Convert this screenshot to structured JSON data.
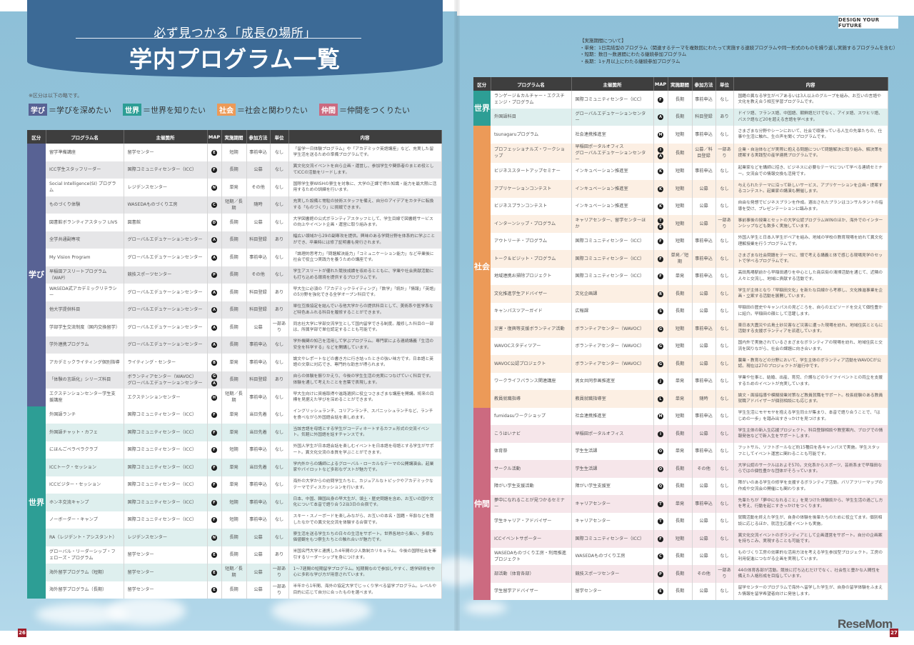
{
  "header": {
    "subtitle": "必ず見つかる「成長の場所」",
    "title": "学内プログラム一覧",
    "design_tag": "DESIGN YOUR FUTURE"
  },
  "legend": {
    "note": "※区分は以下の略です。",
    "items": [
      {
        "tag": "学び",
        "text": "＝学びを深めたい",
        "color": "#586294"
      },
      {
        "tag": "世界",
        "text": "＝世界を知りたい",
        "color": "#2d9e95"
      },
      {
        "tag": "社会",
        "text": "＝社会と関わりたい",
        "color": "#ec9a58"
      },
      {
        "tag": "仲間",
        "text": "＝仲間をつくりたい",
        "color": "#cc6a80"
      }
    ]
  },
  "period_note": {
    "title": "【実施期間について】",
    "lines": [
      "・単発：1日完結型のプログラム（関連するテーマを複数回にわたって実施する連続プログラムや同一形式のものを繰り返し実施するプログラムを含む）",
      "・短期：数日～数週間にわたる継続参加プログラム",
      "・長期：1ヶ月以上にわたる継続参加プログラム"
    ]
  },
  "table_headers": {
    "category": "区分",
    "name": "プログラム名",
    "host": "主催箇所",
    "map": "MAP",
    "period": "実施期間",
    "method": "参加方法",
    "credit": "単位",
    "content": "内容"
  },
  "categories": {
    "manabi": "学び",
    "sekai": "世界",
    "shakai": "社会",
    "nakama": "仲間"
  },
  "left_rows": [
    {
      "cat": "manabi",
      "name": "留学準備講座",
      "host": "留学センター",
      "map": [
        "E"
      ],
      "period": "短期",
      "method": "事前申込",
      "credit": "なし",
      "content": "「留学一日体験プログラム」や「アカデミック英語講座」など、充実した留学生活を送るための準備プログラムです。"
    },
    {
      "cat": "manabi",
      "name": "ICC学生スタッフリーダー",
      "host": "国際コミュニティセンター（ICC）",
      "map": [
        "F"
      ],
      "period": "長期",
      "method": "公募",
      "credit": "なし",
      "content": "異文化交流イベントを自ら企画・運営し、参加学生や関係者のまとめ役としてICCの活動をリードします。"
    },
    {
      "cat": "manabi",
      "name": "Social Intelligence(SI) プログラム",
      "host": "レジデンスセンター",
      "map": [
        "N"
      ],
      "period": "単発",
      "method": "その他",
      "credit": "なし",
      "content": "国際学生寮WISHの寮生を対象に、大学の正課で得た知識・能力を最大限に活用するための訓練を行います。"
    },
    {
      "cat": "manabi",
      "name": "ものづくり体験",
      "host": "WASEDAものづくり工房",
      "map": [
        "C"
      ],
      "period": "短期／長期",
      "method": "随時",
      "credit": "なし",
      "content": "充実した設備と常駐の技術スタッフを備え、自分のアイデアをカタチに転換する「ものづくり」に挑戦できます。"
    },
    {
      "cat": "manabi",
      "name": "図書館ボランティアスタッフ LIVS",
      "host": "図書館",
      "map": [
        "D"
      ],
      "period": "長期",
      "method": "公募",
      "credit": "なし",
      "content": "大学図書館の公式ボランティアスタッフとして、学生目線で図書館サービスの向上やイベント企画・運営に取り組みます。"
    },
    {
      "cat": "manabi",
      "name": "全学共通副専攻",
      "host": "グローバルエデュケーションセンター",
      "map": [
        "A"
      ],
      "period": "長期",
      "method": "科目登録",
      "credit": "あり",
      "content": "幅広い領域から29の副専攻を提供。興味のある学問分野を体系的に学ぶことができ、卒業時には修了証明書も発行されます。"
    },
    {
      "cat": "manabi",
      "name": "My Vision Program",
      "host": "グローバルエデュケーションセンター",
      "map": [
        "A"
      ],
      "period": "長期",
      "method": "事前申込",
      "credit": "なし",
      "content": "「論理的思考力」「問題解決能力」「コミュニケーション能力」など卒業後に社会で役立つ実践力を養うための講座です。"
    },
    {
      "cat": "manabi",
      "name": "早稲田アスリートプログラム（WAP）",
      "host": "競技スポーツセンター",
      "map": [
        "P"
      ],
      "period": "長期",
      "method": "その他",
      "credit": "なし",
      "content": "学生アスリートが優れた競技成績を収めるとともに、学業や社会貢献活動にも打ち込める環境を提供するプログラムです。"
    },
    {
      "cat": "manabi",
      "name": "WASEDA式アカデミックリテラシー",
      "host": "グローバルエデュケーションセンター",
      "map": [
        "A"
      ],
      "period": "長期",
      "method": "科目登録",
      "credit": "あり",
      "content": "早大生に必須の「アカデミックライティング」「数学」「統計」「情報」「英語」の5分野を強化できる全学オープン科目です。"
    },
    {
      "cat": "manabi",
      "name": "他大学提供科目",
      "host": "グローバルエデュケーションセンター",
      "map": [
        "A"
      ],
      "period": "長期",
      "method": "科目登録",
      "credit": "あり",
      "content": "単位互換協定を結んでいる他大学からの提供科目として、美術系や医学系など特色あふれる科目を履修することができます。"
    },
    {
      "cat": "manabi",
      "name": "学部学生交流制度（国内交換留学）",
      "host": "グローバルエデュケーションセンター",
      "map": [
        "A"
      ],
      "period": "長期",
      "method": "公募",
      "credit": "一部あり",
      "content": "同志社大学に学部交流学生として国内留学できる制度。履修した科目の一部は、所属学部で単位認定することも可能です。"
    },
    {
      "cat": "manabi",
      "name": "学外連携プログラム",
      "host": "グローバルエデュケーションセンター",
      "map": [
        "A"
      ],
      "period": "長期",
      "method": "事前申込",
      "credit": "なし",
      "content": "学外機関の知己を活用して学ぶプログラム。専門家による連続講義「生活の安全を科学する」などを開講しています。"
    },
    {
      "cat": "manabi",
      "name": "アカデミックライティング個別指導",
      "host": "ライティング・センター",
      "map": [
        "B"
      ],
      "period": "単発",
      "method": "事前申込",
      "credit": "なし",
      "content": "論文やレポートなどの書き方に行き詰ったときの強い味方です。日本語と英語の文章に対応でき、専門的な助言が得られます。"
    },
    {
      "cat": "manabi",
      "name": "「体験の言語化」シリーズ科目",
      "host": "ボランティアセンター（WAVOC）\nグローバルエデュケーションセンター",
      "map": [
        "G",
        "A"
      ],
      "period": "長期",
      "method": "科目登録",
      "credit": "あり",
      "content": "自らの体験を振りかえり、今後の学生生活の充実につなげていく科目です。体験を通して考えたことを言葉で表現します。"
    },
    {
      "cat": "manabi",
      "name": "エクステンションセンター学生支援講座",
      "host": "エクステンションセンター",
      "map": [
        "H"
      ],
      "period": "短期／長期",
      "method": "事前申込",
      "credit": "なし",
      "content": "早大生向けに資格取得や進路選択に役立つさまざまな講座を開講。将来の目標を見据えた学びを深めることができます。"
    },
    {
      "cat": "sekai",
      "name": "外国語ランチ",
      "host": "国際コミュニティセンター（ICC）",
      "map": [
        "F"
      ],
      "period": "単発",
      "method": "当日先着",
      "credit": "なし",
      "content": "イングリッシュランチ、コリアンランチ、スパニッシュランチなど、ランチを食べながら外国語会話を楽しめます。"
    },
    {
      "cat": "sekai",
      "name": "外国語チャット・カフェ",
      "host": "国際コミュニティセンター（ICC）",
      "map": [
        "F"
      ],
      "period": "単発",
      "method": "当日先着",
      "credit": "なし",
      "content": "当該言語を母語とする学生がコーディネートするカフェ形式の交流イベント。気軽に外国語を話すチャンスです。"
    },
    {
      "cat": "sekai",
      "name": "にほんごペラペラクラブ",
      "host": "国際コミュニティセンター（ICC）",
      "map": [
        "F"
      ],
      "period": "短期",
      "method": "事前申込",
      "credit": "なし",
      "content": "外国人学生が日本語会話を楽しむイベントを日本語を母語とする学生がサポート。異文化交流の本質を学ぶことができます。"
    },
    {
      "cat": "sekai",
      "name": "ICCトーク・セッション",
      "host": "国際コミュニティセンター（ICC）",
      "map": [
        "F"
      ],
      "period": "単発",
      "method": "当日先着",
      "credit": "なし",
      "content": "学内外からの講師によるグローバル・ローカルなテーマの公開講演会。起業家やパイロットなど多彩なゲストが魅力です。"
    },
    {
      "cat": "sekai",
      "name": "ICCビジター・セッション",
      "host": "国際コミュニティセンター（ICC）",
      "map": [
        "F"
      ],
      "period": "単発",
      "method": "事前申込",
      "credit": "なし",
      "content": "海外の大学からの訪問学生たちと、カジュアルなトピックやアカデミックなテーマでディスカッションを行います。"
    },
    {
      "cat": "sekai",
      "name": "ホンネ交流キャンプ",
      "host": "国際コミュニティセンター（ICC）",
      "map": [
        "F"
      ],
      "period": "短期",
      "method": "事前申込",
      "credit": "なし",
      "content": "日本、中国、韓国出身の早大生が、領土・歴史問題を含め、お互いの国や文化について本音で語り合う2泊3日の合宿です。"
    },
    {
      "cat": "sekai",
      "name": "ノーボーダー・キャンプ",
      "host": "国際コミュニティセンター（ICC）",
      "map": [
        "F"
      ],
      "period": "短期",
      "method": "事前申込",
      "credit": "なし",
      "content": "スキー・スノーボードを楽しみながら、お互いの本名・国籍・年齢などを隠したなかでの異文化交流を体験する合宿です。"
    },
    {
      "cat": "sekai",
      "name": "RA（レジデント・アシスタント）",
      "host": "レジデンスセンター",
      "map": [
        "N"
      ],
      "period": "長期",
      "method": "公募",
      "credit": "なし",
      "content": "寮生活を送る学生たちの日々の生活をサポート。世界各地から集い、多様な価値観をもつ寮生たちとの触れ合いが魅力です。"
    },
    {
      "cat": "sekai",
      "name": "グローバル・リーダーシップ・フェローズ・プログラム",
      "host": "留学センター",
      "map": [
        "E"
      ],
      "period": "長期",
      "method": "公募",
      "credit": "あり",
      "content": "米国名門大学と連携した4年間の少人数制カリキュラム。今後の国際社会を牽引するリーダーシップを身につけます。"
    },
    {
      "cat": "sekai",
      "name": "海外留学プログラム（短期）",
      "host": "留学センター",
      "map": [
        "E"
      ],
      "period": "短期／長期",
      "method": "公募",
      "credit": "一部あり",
      "content": "1～7週間の短期留学プログラム。短期間なので参加しやすく、語学研修を中心に多彩な学び方が用意されています。"
    },
    {
      "cat": "sekai",
      "name": "海外留学プログラム（長期）",
      "host": "留学センター",
      "map": [
        "E"
      ],
      "period": "長期",
      "method": "公募",
      "credit": "一部あり",
      "content": "半年から1年間、海外の協定大学でじっくり学べる留学プログラム。レベルや目的に応じて自分に合ったものを選べます。"
    }
  ],
  "right_rows": [
    {
      "cat": "sekai",
      "name": "ランゲージ＆カルチャー・エクスチェンジ・プログラム",
      "host": "国際コミュニティセンター（ICC）",
      "map": [
        "F"
      ],
      "period": "長期",
      "method": "事前申込",
      "credit": "なし",
      "content": "国籍の異なる学生がペアあるいは3人以上のグループを組み、お互いの言語や文化を教え合う相互学習プログラムです。"
    },
    {
      "cat": "sekai",
      "name": "外国語科目",
      "host": "グローバルエデュケーションセンター",
      "map": [
        "A"
      ],
      "period": "長期",
      "method": "科目登録",
      "credit": "あり",
      "content": "ドイツ語、フランス語、中国語、朝鮮語だけでなく、アイヌ語、スワヒリ語、バスク語など20を超える言語を学べます。"
    },
    {
      "cat": "shakai",
      "name": "tsunagaruプログラム",
      "host": "社会連携推進室",
      "map": [
        "M"
      ],
      "period": "短期",
      "method": "事前申込",
      "credit": "なし",
      "content": "さまざまな分野やシーンにおいて、社会で頑張っている人生の先輩たちの、仕事や生活に触れ、生の声を聞くプログラムです。"
    },
    {
      "cat": "shakai",
      "name": "プロフェッショナルズ・ワークショップ",
      "host": "早稲田ポータルオフィス\nグローバルエデュケーションセンター",
      "map": [
        "I",
        "A"
      ],
      "period": "長期",
      "method": "公募／科目登録",
      "credit": "一部あり",
      "content": "企業・自治体などが実際に抱える問題について問題解決に取り組み、解決策を提案する実践型の産学連携プログラムです。"
    },
    {
      "cat": "shakai",
      "name": "ビジネススタートアップセミナー",
      "host": "インキュベーション推進室",
      "map": [
        "K"
      ],
      "period": "短期",
      "method": "事前申込",
      "credit": "なし",
      "content": "起業家などを講師に招き、ビジネスに必要なテーマについて学べる連続セミナー。交流会での情報交換も活発です。"
    },
    {
      "cat": "shakai",
      "name": "アプリケーションコンテスト",
      "host": "インキュベーション推進室",
      "map": [
        "K"
      ],
      "period": "短期",
      "method": "公募",
      "credit": "なし",
      "content": "与えられたテーマに沿って新しいサービス、アプリケーションを企画・提案するコンテスト。起業家の講演も開催します。"
    },
    {
      "cat": "shakai",
      "name": "ビジネスプランコンテスト",
      "host": "インキュベーション推進室",
      "map": [
        "K"
      ],
      "period": "短期",
      "method": "公募",
      "credit": "なし",
      "content": "自由な発想でビジネスプランを作成。選出されたプランはコンサルタントの指導を受け、プレゼンテーションに臨みます。"
    },
    {
      "cat": "shakai",
      "name": "インターンシップ・プログラム",
      "host": "キャリアセンター、留学センターほか",
      "map": [
        "T",
        "E"
      ],
      "period": "短期",
      "method": "公募",
      "credit": "一部あり",
      "content": "事前事後の授業とセットの大学公認プログラムWINのほか、海外でのインターンシップなども数多く実施しています。"
    },
    {
      "cat": "shakai",
      "name": "アウトリーチ・プログラム",
      "host": "国際コミュニティセンター（ICC）",
      "map": [
        "F"
      ],
      "period": "短期",
      "method": "事前申込",
      "credit": "なし",
      "content": "外国人学生と日本人学生がペアを組み、地域の学校の教育現場を訪れて異文化理解授業を行うプログラムです。"
    },
    {
      "cat": "shakai",
      "name": "トーク＆ビジット・プログラム",
      "host": "国際コミュニティセンター（ICC）",
      "map": [
        "F"
      ],
      "period": "単発／短期",
      "method": "事前申込",
      "credit": "なし",
      "content": "さまざまな社会問題をテーマに、頭で考える講義と体で感じる現場見学のセットで学べるプログラムです。"
    },
    {
      "cat": "shakai",
      "name": "地域連携お掃除プロジェクト",
      "host": "国際コミュニティセンター（ICC）",
      "map": [
        "F"
      ],
      "period": "単発",
      "method": "事前申込",
      "credit": "なし",
      "content": "高田馬場駅前から早稲田通りを中心とした商店街の清掃活動を通じて、近隣の人々と交流し、地域に貢献する活動です。"
    },
    {
      "cat": "shakai",
      "name": "文化推進学生アドバイザー",
      "host": "文化企画課",
      "map": [
        "R"
      ],
      "period": "長期",
      "method": "公募",
      "credit": "なし",
      "content": "学生が主体となり「早稲田文化」を新たな目線から考察し、文化推進事業を企画・立案する活動を展開しています。"
    },
    {
      "cat": "shakai",
      "name": "キャンパスツアーガイド",
      "host": "広報課",
      "map": [
        "S"
      ],
      "period": "長期",
      "method": "公募",
      "credit": "なし",
      "content": "早稲田の歴史やキャンパスの見どころを、自らのエピソードを交えて個性豊かに紹介。早稲田の顔として活躍します。"
    },
    {
      "cat": "shakai",
      "name": "災害・復興等支援ボランティア活動",
      "host": "ボランティアセンター（WAVOC）",
      "map": [
        "G"
      ],
      "period": "短期",
      "method": "事前申込",
      "credit": "なし",
      "content": "東日本大震災や広島土砂災害など災害に遭った現場を訪れ、地域住民とともに活動する支援ボランティアを派遣しています。"
    },
    {
      "cat": "shakai",
      "name": "WAVOCスタディツアー",
      "host": "ボランティアセンター（WAVOC）",
      "map": [
        "G"
      ],
      "period": "短期",
      "method": "公募",
      "credit": "なし",
      "content": "国内外で実施されているさまざまなボランティアの現場を訪れ、地域住民と交流を図りながら、社会の課題に向き合います。"
    },
    {
      "cat": "shakai",
      "name": "WAVOC公認プロジェクト",
      "host": "ボランティアセンター（WAVOC）",
      "map": [
        "G"
      ],
      "period": "長期",
      "method": "公募",
      "credit": "なし",
      "content": "農業・教育などの分野において、学生主体のボランティア活動をWAVOCが公認。現在は27のプロジェクトが進行中です。"
    },
    {
      "cat": "shakai",
      "name": "ワークライフバランス関連講座",
      "host": "男女共同参画推進室",
      "map": [
        "J"
      ],
      "period": "単発",
      "method": "事前申込",
      "credit": "なし",
      "content": "学業や仕事と、結婚、出産、育児、介護などのライフイベントとの両立を支援するためのイベントが充実しています。"
    },
    {
      "cat": "shakai",
      "name": "教員就職指導",
      "host": "教員就職指導室",
      "map": [
        "L"
      ],
      "period": "単発",
      "method": "随時",
      "credit": "なし",
      "content": "論文・面接指導や模擬授業対策など教員就職をサポート。校長経験のある教員就職アドバイザーが個別相談にも応じます。"
    },
    {
      "cat": "nakama",
      "name": "fumidasuワークショップ",
      "host": "社会連携推進室",
      "map": [
        "M"
      ],
      "period": "短期",
      "method": "事前申込",
      "credit": "なし",
      "content": "学生生活にモヤモヤを抱える学生同士が集まり、本音で語り合うことで、「はじめの一歩」を踏み出すきっかけを見つけます。"
    },
    {
      "cat": "nakama",
      "name": "こうはいナビ",
      "host": "早稲田ポータルオフィス",
      "map": [
        "I"
      ],
      "period": "長期",
      "method": "公募",
      "credit": "なし",
      "content": "学生主体の新入生応援プロジェクト。科目登録相談や教室案内、ブログでの情報発信などで新入生をサポートします。"
    },
    {
      "cat": "nakama",
      "name": "体育祭",
      "host": "学生生活課",
      "map": [
        "O"
      ],
      "period": "単発",
      "method": "事前申込",
      "credit": "なし",
      "content": "フットサル、ソフトボールなど約15種目を各キャンパスで実施。学生スタッフとしてイベント運営に関わることも可能です。"
    },
    {
      "cat": "nakama",
      "name": "サークル活動",
      "host": "学生生活課",
      "map": [
        "O"
      ],
      "period": "長期",
      "method": "その他",
      "credit": "なし",
      "content": "大学公認のサークルはおよそ570。文化系からスポーツ、芸術系まで早稲田ならではの個性豊かな団体がそろっています。"
    },
    {
      "cat": "nakama",
      "name": "障がい学生支援活動",
      "host": "障がい学生支援室",
      "map": [
        "Q"
      ],
      "period": "長期",
      "method": "公募",
      "credit": "なし",
      "content": "障がいのある学生の修学を支援するボランティア活動。バリアフリーマップの作成や交流会の開催にも関わります。"
    },
    {
      "cat": "nakama",
      "name": "夢中になれることが見つかるセミナー",
      "host": "キャリアセンター",
      "map": [
        "T"
      ],
      "period": "単発",
      "method": "事前申込",
      "credit": "なし",
      "content": "先輩たちが「夢中になれること」を見つけた体験談から、学生生活の過ごし方を考え、行動を起こすきっかけをつくります。"
    },
    {
      "cat": "nakama",
      "name": "学生キャリア・アドバイザー",
      "host": "キャリアセンター",
      "map": [
        "T"
      ],
      "period": "長期",
      "method": "公募",
      "credit": "なし",
      "content": "就職活動を終えた学生が、自身の体験を後輩たちのために役立てます。個別相談に応じるほか、就活生応援イベントも実施。"
    },
    {
      "cat": "nakama",
      "name": "ICCイベントサポーター",
      "host": "国際コミュニティセンター（ICC）",
      "map": [
        "F"
      ],
      "period": "短期",
      "method": "公募",
      "credit": "なし",
      "content": "異文化交流イベントのボランティアとして企画運営をサポート。自分の企画案を持ちこみ、実現することも可能です。"
    },
    {
      "cat": "nakama",
      "name": "WASEDAものづくり工房・利用推進プロジェクト",
      "host": "WASEDAものづくり工房",
      "map": [
        "C"
      ],
      "period": "長期",
      "method": "公募",
      "credit": "なし",
      "content": "ものづくり工房の効果的な活用方法を考える学生参加型プロジェクト。工房の利用促進につながる企画を実現しています。"
    },
    {
      "cat": "nakama",
      "name": "部活動（体育各部）",
      "host": "競技スポーツセンター",
      "map": [
        "P"
      ],
      "period": "長期",
      "method": "その他",
      "credit": "一部あり",
      "content": "44の体育各部が活動。競技に打ち込むだけでなく、社会性と豊かな人間性を備えた人格形成を目指しています。"
    },
    {
      "cat": "nakama",
      "name": "学生留学アドバイザー",
      "host": "留学センター",
      "map": [
        "E"
      ],
      "period": "長期",
      "method": "公募",
      "credit": "なし",
      "content": "留学センターのプログラムで海外へ留学した学生が、自身の留学体験をふまえた情報を留学希望者向けに発信します。"
    }
  ],
  "footer": {
    "page_left": "26",
    "page_right": "27",
    "watermark": "ReseMom"
  },
  "colors": {
    "banner": "#3c6a96",
    "manabi": "#586294",
    "sekai": "#2d9e95",
    "shakai": "#ec9a58",
    "nakama": "#cc6a80",
    "header_row": "#3e3e3e",
    "page_number": "#a01e2a"
  }
}
